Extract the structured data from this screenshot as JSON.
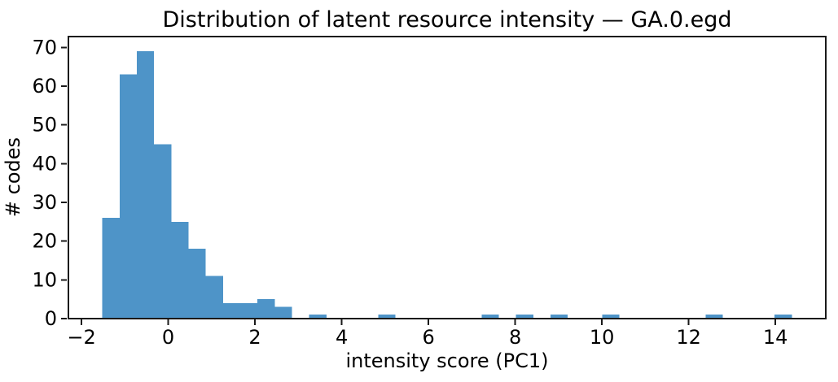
{
  "chart_data": {
    "type": "bar",
    "subtype": "histogram",
    "title": "Distribution of latent resource intensity — GA.0.egd",
    "xlabel": "intensity score (PC1)",
    "ylabel": "# codes",
    "xlim": [
      -2.32,
      15.18
    ],
    "ylim": [
      0,
      73
    ],
    "grid": false,
    "legend": false,
    "bar_color": "#4e94c8",
    "axis_color": "#1a1a1a",
    "x_ticks": {
      "values": [
        -2,
        0,
        2,
        4,
        6,
        8,
        10,
        12,
        14
      ],
      "labels": [
        "−2",
        "0",
        "2",
        "4",
        "6",
        "8",
        "10",
        "12",
        "14"
      ]
    },
    "y_ticks": {
      "values": [
        0,
        10,
        20,
        30,
        40,
        50,
        60,
        70
      ],
      "labels": [
        "0",
        "10",
        "20",
        "30",
        "40",
        "50",
        "60",
        "70"
      ]
    },
    "bins": {
      "start": -1.52,
      "width": 0.3975,
      "counts": [
        26,
        63,
        69,
        45,
        25,
        18,
        11,
        4,
        4,
        5,
        3,
        0,
        1,
        0,
        0,
        0,
        1,
        0,
        0,
        0,
        0,
        0,
        1,
        0,
        1,
        0,
        1,
        0,
        0,
        1,
        0,
        0,
        0,
        0,
        0,
        1,
        0,
        0,
        0,
        1
      ]
    }
  }
}
